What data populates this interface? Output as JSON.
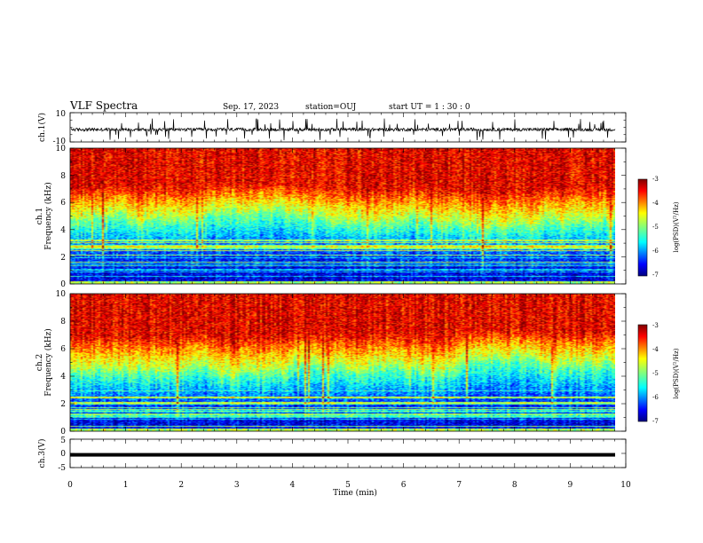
{
  "header": {
    "title": "VLF Spectra",
    "date": "Sep. 17, 2023",
    "station": "station=OUJ",
    "start": "start  UT =   1 : 30 : 0"
  },
  "chart_data": [
    {
      "type": "line",
      "panel": "ch1-waveform",
      "ylabel": "ch.1(V)",
      "ylim": [
        -10,
        10
      ],
      "yticks": [
        "10",
        "-10"
      ],
      "xlim": [
        0,
        10
      ],
      "baseline": -1.5
    },
    {
      "type": "heatmap",
      "panel": "ch1-spectrogram",
      "ylabel_top": "ch.1",
      "ylabel": "Frequency (kHz)",
      "ylim": [
        0,
        10
      ],
      "yticks": [
        "0",
        "2",
        "4",
        "6",
        "8",
        "10"
      ],
      "xlim": [
        0,
        9.8
      ],
      "colorbar": {
        "label": "log(PSD)(V²/Hz)",
        "range": [
          -7,
          -3
        ],
        "ticks": [
          "-3",
          "-4",
          "-5",
          "-6",
          "-7"
        ]
      },
      "noise_floor_khz": 5.0
    },
    {
      "type": "heatmap",
      "panel": "ch2-spectrogram",
      "ylabel_top": "ch.2",
      "ylabel": "Frequency (kHz)",
      "ylim": [
        0,
        10
      ],
      "yticks": [
        "0",
        "2",
        "4",
        "6",
        "8",
        "10"
      ],
      "xlim": [
        0,
        9.8
      ],
      "colorbar": {
        "label": "log(PSD)(V²/Hz)",
        "range": [
          -7,
          -3
        ],
        "ticks": [
          "-3",
          "-4",
          "-5",
          "-6",
          "-7"
        ]
      },
      "noise_floor_khz": 4.5
    },
    {
      "type": "line",
      "panel": "ch3-waveform",
      "ylabel": "ch.3(V)",
      "ylim": [
        -5,
        5
      ],
      "yticks": [
        "5",
        "0",
        "-5"
      ],
      "xlim": [
        0,
        10
      ],
      "baseline": -0.5
    }
  ],
  "xaxis": {
    "label": "Time (min)",
    "ticks": [
      "0",
      "1",
      "2",
      "3",
      "4",
      "5",
      "6",
      "7",
      "8",
      "9",
      "10"
    ]
  },
  "colors": [
    "#00007f",
    "#0000ff",
    "#007fff",
    "#00ffff",
    "#7fff7f",
    "#ffff00",
    "#ff7f00",
    "#ff0000",
    "#7f0000"
  ]
}
